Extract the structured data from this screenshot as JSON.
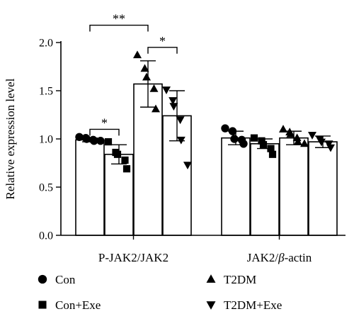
{
  "chart_data": {
    "type": "bar",
    "ylabel": "Relative expression level",
    "ylim": [
      0,
      2.0
    ],
    "yticks": [
      {
        "value": 0.0,
        "label": "0.0"
      },
      {
        "value": 0.5,
        "label": "0.5"
      },
      {
        "value": 1.0,
        "label": "1.0"
      },
      {
        "value": 1.5,
        "label": "1.5"
      },
      {
        "value": 2.0,
        "label": "2.0"
      }
    ],
    "bar_fill": "#ffffff",
    "ink": "#000000",
    "groups": [
      {
        "label_main": "P-JAK2/JAK2",
        "label_italic": "",
        "label_tail": "",
        "bars": [
          {
            "series": "Con",
            "value": 0.99,
            "error": 0.02,
            "points": [
              1.02,
              1.01,
              1.0,
              0.99,
              0.98,
              0.98
            ]
          },
          {
            "series": "Con+Exe",
            "value": 0.84,
            "error": 0.1,
            "points": [
              0.97,
              0.86,
              0.84,
              0.78,
              0.69
            ]
          },
          {
            "series": "T2DM",
            "value": 1.57,
            "error": 0.24,
            "points": [
              1.87,
              1.73,
              1.64,
              1.52,
              1.31
            ]
          },
          {
            "series": "T2DM+Exe",
            "value": 1.24,
            "error": 0.26,
            "points": [
              1.51,
              1.4,
              1.34,
              1.2,
              0.99,
              0.73
            ]
          }
        ]
      },
      {
        "label_main": "JAK2/",
        "label_italic": "β",
        "label_tail": "-actin",
        "bars": [
          {
            "series": "Con",
            "value": 1.01,
            "error": 0.07,
            "points": [
              1.11,
              1.08,
              1.0,
              0.99,
              0.95
            ]
          },
          {
            "series": "Con+Exe",
            "value": 0.95,
            "error": 0.05,
            "points": [
              1.01,
              0.98,
              0.94,
              0.9,
              0.84
            ]
          },
          {
            "series": "T2DM",
            "value": 1.01,
            "error": 0.07,
            "points": [
              1.1,
              1.07,
              1.05,
              1.01,
              0.97,
              0.95
            ]
          },
          {
            "series": "T2DM+Exe",
            "value": 0.97,
            "error": 0.06,
            "points": [
              1.04,
              1.0,
              0.97,
              0.95,
              0.91
            ]
          }
        ]
      }
    ],
    "significance": [
      {
        "group": 0,
        "from": 0,
        "to": 1,
        "y": 1.1,
        "label": "*"
      },
      {
        "group": 0,
        "from": 0,
        "to": 2,
        "y": 2.18,
        "label": "**"
      },
      {
        "group": 0,
        "from": 2,
        "to": 3,
        "y": 1.95,
        "label": "*"
      }
    ],
    "legend": [
      {
        "label": "Con",
        "marker": "circle"
      },
      {
        "label": "T2DM",
        "marker": "triangle-up"
      },
      {
        "label": "Con+Exe",
        "marker": "square"
      },
      {
        "label": "T2DM+Exe",
        "marker": "triangle-down"
      }
    ],
    "legend_placement": "bottom"
  }
}
